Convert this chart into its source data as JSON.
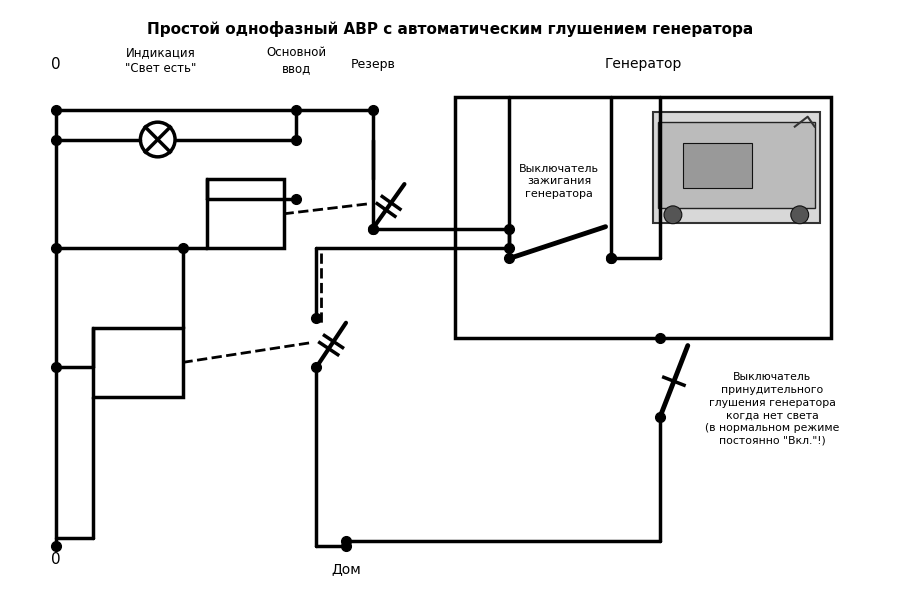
{
  "title": "Простой однофазный АВР с автоматическим глушением генератора",
  "label_0_top": "0",
  "label_0_bot": "0",
  "label_indication": "Индикация\n\"Свет есть\"",
  "label_main": "Основной\nввод",
  "label_reserve": "Резерв",
  "label_generator": "Генератор",
  "label_ignition": "Выключатель\nзажигания\nгенератора",
  "label_forced": "Выключатель\nпринудительного\nглушения генератора\nкогда нет света\n(в нормальном режиме\nпостоянно \"Вкл.\"!)",
  "label_dom": "Дом",
  "lw": 2.5,
  "dot_size": 7,
  "bg_color": "#ffffff",
  "line_color": "#000000"
}
